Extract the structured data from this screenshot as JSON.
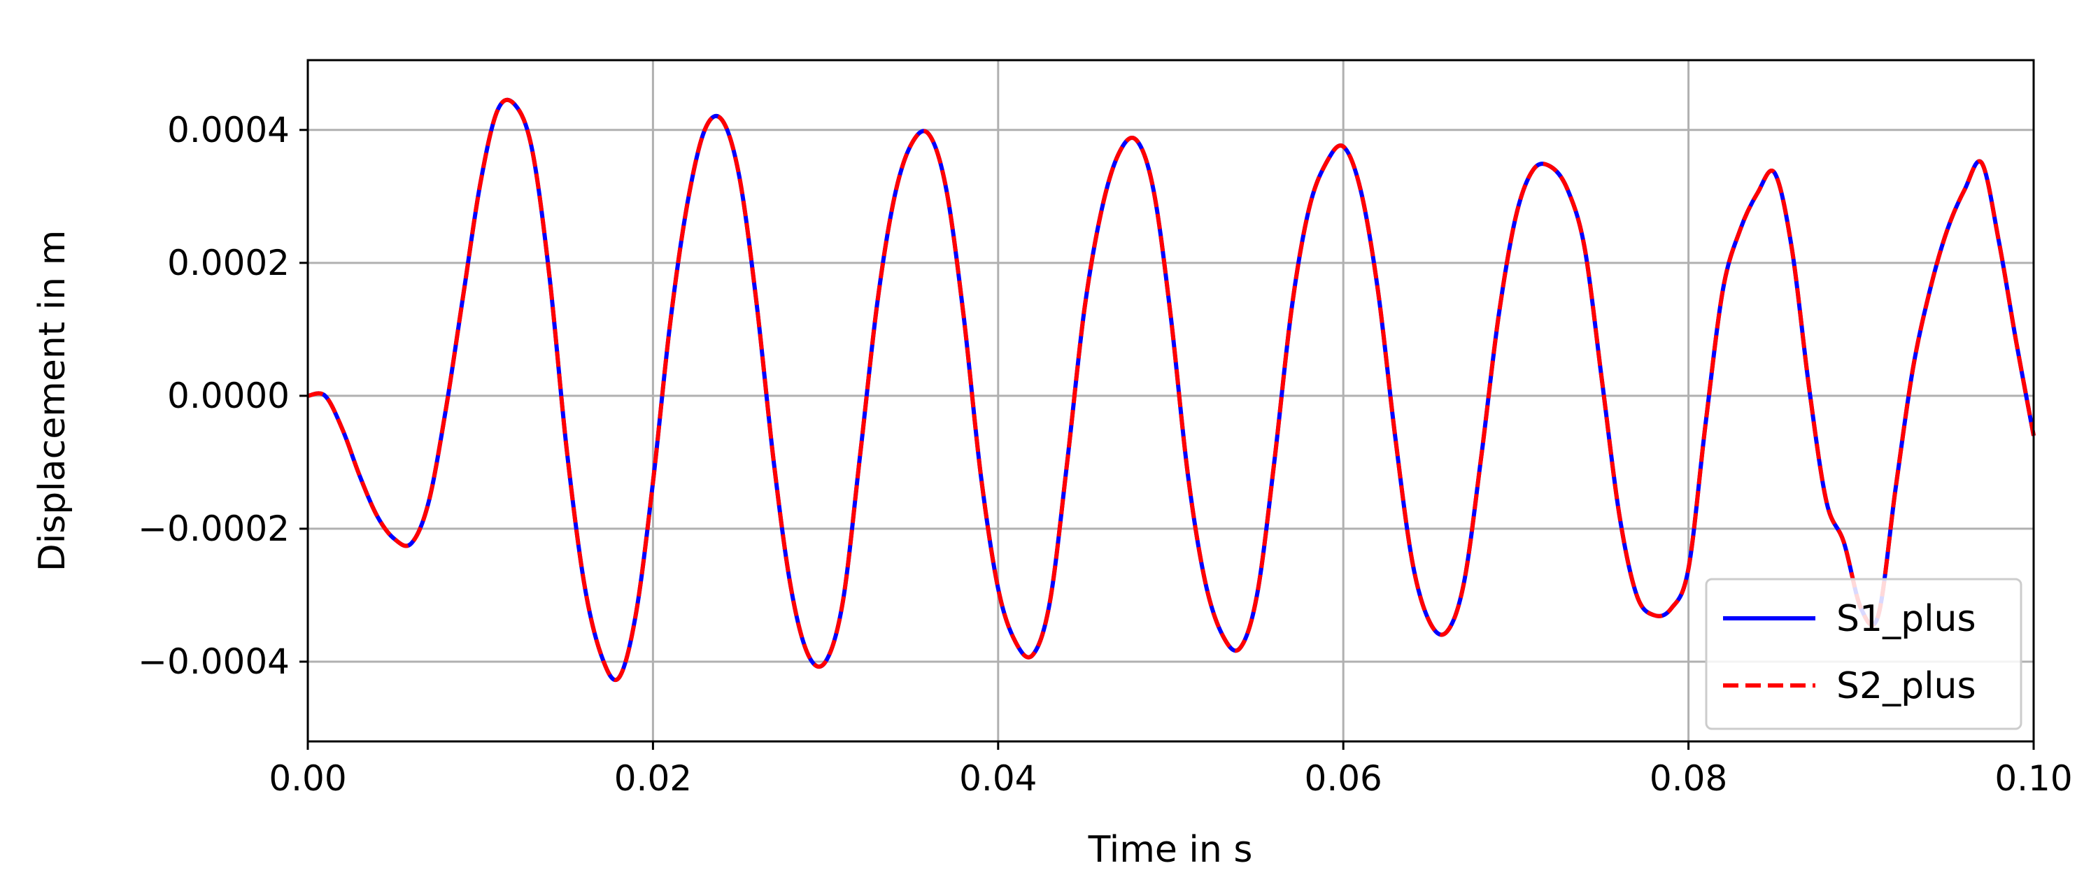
{
  "chart_data": {
    "type": "line",
    "title": "",
    "xlabel": "Time in s",
    "ylabel": "Displacement in m",
    "xlim": [
      0.0,
      0.1
    ],
    "ylim": [
      -0.00052,
      0.000505
    ],
    "xticks": [
      0.0,
      0.02,
      0.04,
      0.06,
      0.08,
      0.1
    ],
    "xtick_labels": [
      "0.00",
      "0.02",
      "0.04",
      "0.06",
      "0.08",
      "0.10"
    ],
    "yticks": [
      0.0004,
      0.0002,
      0.0,
      -0.0002,
      -0.0004
    ],
    "ytick_labels": [
      "0.0004",
      "0.0002",
      "0.0000",
      "−0.0002",
      "−0.0004"
    ],
    "grid": true,
    "legend_position": "lower-right",
    "series": [
      {
        "name": "S1_plus",
        "color": "#0000ff",
        "style": "solid",
        "x": [
          0.0,
          0.001,
          0.002,
          0.003,
          0.004,
          0.005,
          0.006,
          0.007,
          0.008,
          0.009,
          0.01,
          0.011,
          0.012,
          0.013,
          0.014,
          0.015,
          0.016,
          0.017,
          0.018,
          0.019,
          0.02,
          0.021,
          0.022,
          0.023,
          0.024,
          0.025,
          0.026,
          0.027,
          0.028,
          0.029,
          0.03,
          0.031,
          0.032,
          0.033,
          0.034,
          0.035,
          0.036,
          0.037,
          0.038,
          0.039,
          0.04,
          0.041,
          0.042,
          0.043,
          0.044,
          0.045,
          0.046,
          0.047,
          0.048,
          0.049,
          0.05,
          0.051,
          0.052,
          0.053,
          0.054,
          0.055,
          0.056,
          0.057,
          0.058,
          0.059,
          0.06,
          0.061,
          0.062,
          0.063,
          0.064,
          0.065,
          0.066,
          0.067,
          0.068,
          0.069,
          0.07,
          0.071,
          0.072,
          0.073,
          0.074,
          0.075,
          0.076,
          0.077,
          0.078,
          0.079,
          0.08,
          0.081,
          0.082,
          0.083,
          0.084,
          0.085,
          0.086,
          0.087,
          0.088,
          0.089,
          0.09,
          0.091,
          0.092,
          0.093,
          0.094,
          0.095,
          0.096,
          0.097,
          0.098,
          0.099,
          0.1
        ],
        "y": [
          0.0,
          0.0,
          -5e-05,
          -0.00012,
          -0.00018,
          -0.000215,
          -0.000222,
          -0.00016,
          -2e-05,
          0.00015,
          0.00032,
          0.00043,
          0.000438,
          0.00037,
          0.00018,
          -8e-05,
          -0.00028,
          -0.00039,
          -0.000425,
          -0.00033,
          -0.00013,
          0.00011,
          0.00029,
          0.0004,
          0.000415,
          0.00033,
          0.00014,
          -0.0001,
          -0.00029,
          -0.00039,
          -0.0004,
          -0.00031,
          -9e-05,
          0.00014,
          0.0003,
          0.00038,
          0.000393,
          0.00031,
          0.00012,
          -0.00012,
          -0.00029,
          -0.00037,
          -0.00039,
          -0.00031,
          -0.0001,
          0.00013,
          0.00028,
          0.000365,
          0.000385,
          0.00031,
          0.00012,
          -0.00012,
          -0.00028,
          -0.00036,
          -0.00038,
          -0.0003,
          -0.0001,
          0.00013,
          0.00028,
          0.00035,
          0.000375,
          0.00031,
          0.00016,
          -6e-05,
          -0.00025,
          -0.00034,
          -0.000355,
          -0.00028,
          -9e-05,
          0.00012,
          0.00027,
          0.00034,
          0.000345,
          0.00031,
          0.00022,
          2e-05,
          -0.00018,
          -0.0003,
          -0.00033,
          -0.00032,
          -0.00026,
          -4e-05,
          0.00016,
          0.00025,
          0.000305,
          0.000335,
          0.00022,
          1e-05,
          -0.00016,
          -0.00022,
          -0.00032,
          -0.00033,
          -0.00014,
          4e-05,
          0.00016,
          0.00025,
          0.00031,
          0.00035,
          0.00023,
          8e-05,
          -6e-05
        ]
      },
      {
        "name": "S2_plus",
        "color": "#ff0000",
        "style": "dashed",
        "x": [
          0.0,
          0.001,
          0.002,
          0.003,
          0.004,
          0.005,
          0.006,
          0.007,
          0.008,
          0.009,
          0.01,
          0.011,
          0.012,
          0.013,
          0.014,
          0.015,
          0.016,
          0.017,
          0.018,
          0.019,
          0.02,
          0.021,
          0.022,
          0.023,
          0.024,
          0.025,
          0.026,
          0.027,
          0.028,
          0.029,
          0.03,
          0.031,
          0.032,
          0.033,
          0.034,
          0.035,
          0.036,
          0.037,
          0.038,
          0.039,
          0.04,
          0.041,
          0.042,
          0.043,
          0.044,
          0.045,
          0.046,
          0.047,
          0.048,
          0.049,
          0.05,
          0.051,
          0.052,
          0.053,
          0.054,
          0.055,
          0.056,
          0.057,
          0.058,
          0.059,
          0.06,
          0.061,
          0.062,
          0.063,
          0.064,
          0.065,
          0.066,
          0.067,
          0.068,
          0.069,
          0.07,
          0.071,
          0.072,
          0.073,
          0.074,
          0.075,
          0.076,
          0.077,
          0.078,
          0.079,
          0.08,
          0.081,
          0.082,
          0.083,
          0.084,
          0.085,
          0.086,
          0.087,
          0.088,
          0.089,
          0.09,
          0.091,
          0.092,
          0.093,
          0.094,
          0.095,
          0.096,
          0.097,
          0.098,
          0.099,
          0.1
        ],
        "y": [
          0.0,
          0.0,
          -5e-05,
          -0.00012,
          -0.00018,
          -0.000215,
          -0.000222,
          -0.00016,
          -2e-05,
          0.00015,
          0.00032,
          0.00043,
          0.000438,
          0.00037,
          0.00018,
          -8e-05,
          -0.00028,
          -0.00039,
          -0.000425,
          -0.00033,
          -0.00013,
          0.00011,
          0.00029,
          0.0004,
          0.000415,
          0.00033,
          0.00014,
          -0.0001,
          -0.00029,
          -0.00039,
          -0.0004,
          -0.00031,
          -9e-05,
          0.00014,
          0.0003,
          0.00038,
          0.000393,
          0.00031,
          0.00012,
          -0.00012,
          -0.00029,
          -0.00037,
          -0.00039,
          -0.00031,
          -0.0001,
          0.00013,
          0.00028,
          0.000365,
          0.000385,
          0.00031,
          0.00012,
          -0.00012,
          -0.00028,
          -0.00036,
          -0.00038,
          -0.0003,
          -0.0001,
          0.00013,
          0.00028,
          0.00035,
          0.000375,
          0.00031,
          0.00016,
          -6e-05,
          -0.00025,
          -0.00034,
          -0.000355,
          -0.00028,
          -9e-05,
          0.00012,
          0.00027,
          0.00034,
          0.000345,
          0.00031,
          0.00022,
          2e-05,
          -0.00018,
          -0.0003,
          -0.00033,
          -0.00032,
          -0.00026,
          -4e-05,
          0.00016,
          0.00025,
          0.000305,
          0.000335,
          0.00022,
          1e-05,
          -0.00016,
          -0.00022,
          -0.00032,
          -0.00033,
          -0.00014,
          4e-05,
          0.00016,
          0.00025,
          0.00031,
          0.00035,
          0.00023,
          8e-05,
          -6e-05
        ]
      }
    ]
  }
}
